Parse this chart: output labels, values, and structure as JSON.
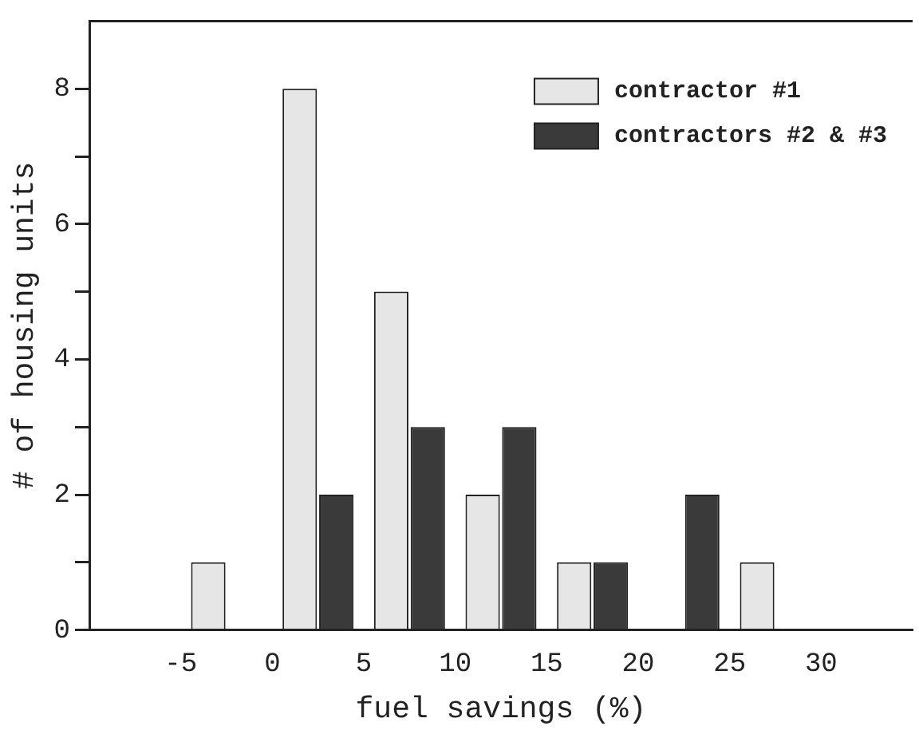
{
  "chart_data": {
    "type": "histogram",
    "xlabel": "fuel savings (%)",
    "ylabel": "# of housing units",
    "bins": [
      -10,
      -5,
      0,
      5,
      10,
      15,
      20,
      25,
      30,
      35
    ],
    "series": [
      {
        "name": "contractor #1",
        "color": "#e6e6e6",
        "values": [
          0,
          1,
          8,
          5,
          2,
          1,
          0,
          1,
          0
        ]
      },
      {
        "name": "contractors #2 & #3",
        "color": "#3a3a3a",
        "values": [
          0,
          0,
          2,
          3,
          3,
          1,
          2,
          0,
          0
        ]
      }
    ],
    "xlim": [
      -10,
      35
    ],
    "xticks": [
      -5,
      0,
      5,
      10,
      15,
      20,
      25,
      30
    ],
    "ylim": [
      0,
      9
    ],
    "yticks": [
      0,
      {
        "value": 1,
        "label": null
      },
      2,
      {
        "value": 3,
        "label": null
      },
      4,
      {
        "value": 5,
        "label": null
      },
      6,
      {
        "value": 7,
        "label": null
      },
      8
    ],
    "grid": false,
    "legend": "top right"
  }
}
